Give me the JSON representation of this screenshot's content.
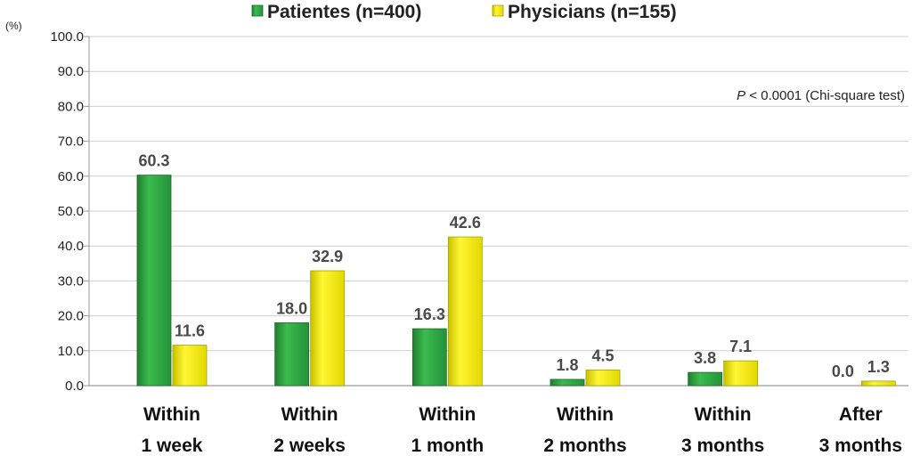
{
  "chart_data": {
    "type": "bar",
    "title": "",
    "xlabel": "",
    "ylabel": "(%)",
    "ylim": [
      0,
      100
    ],
    "yticks": [
      "0.0",
      "10.0",
      "20.0",
      "30.0",
      "40.0",
      "50.0",
      "60.0",
      "70.0",
      "80.0",
      "90.0",
      "100.0"
    ],
    "grid": true,
    "legend_placement": "top-center",
    "categories": [
      [
        "Within",
        "1 week"
      ],
      [
        "Within",
        "2 weeks"
      ],
      [
        "Within",
        "1 month"
      ],
      [
        "Within",
        "2 months"
      ],
      [
        "Within",
        "3 months"
      ],
      [
        "After",
        "3 months"
      ]
    ],
    "series": [
      {
        "name": "Patientes (n=400)",
        "color": "#2ea640",
        "values": [
          60.3,
          18.0,
          16.3,
          1.8,
          3.8,
          0.0
        ],
        "labels": [
          "60.3",
          "18.0",
          "16.3",
          "1.8",
          "3.8",
          "0.0"
        ]
      },
      {
        "name": "Physicians (n=155)",
        "color": "#f2ea00",
        "values": [
          11.6,
          32.9,
          42.6,
          4.5,
          7.1,
          1.3
        ],
        "labels": [
          "11.6",
          "32.9",
          "42.6",
          "4.5",
          "7.1",
          "1.3"
        ]
      }
    ],
    "annotation": {
      "italic": "P",
      "rest": " < 0.0001 (Chi-square test)"
    }
  }
}
